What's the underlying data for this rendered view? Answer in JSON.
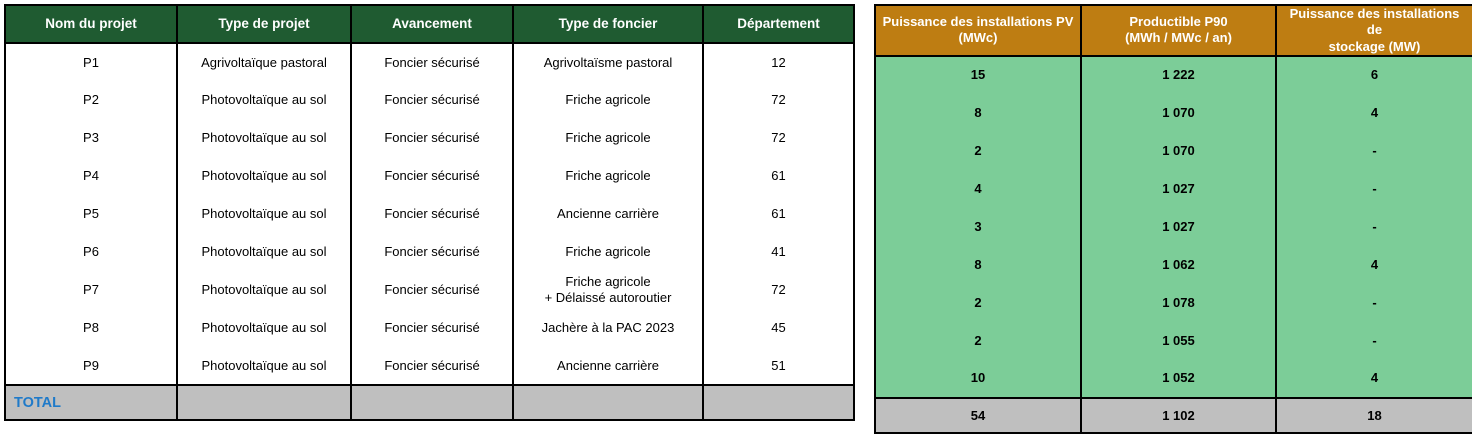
{
  "colors": {
    "header_green": "#1F5B31",
    "header_orange": "#BE7D12",
    "cell_green": "#7CCD98",
    "total_gray": "#BFBFBF",
    "total_blue": "#1F7AC9",
    "border": "#000000"
  },
  "left_table": {
    "headers": [
      "Nom du projet",
      "Type de projet",
      "Avancement",
      "Type de foncier",
      "Département"
    ],
    "rows": [
      [
        "P1",
        "Agrivoltaïque pastoral",
        "Foncier sécurisé",
        "Agrivoltaïsme pastoral",
        "12"
      ],
      [
        "P2",
        "Photovoltaïque au sol",
        "Foncier sécurisé",
        "Friche agricole",
        "72"
      ],
      [
        "P3",
        "Photovoltaïque au sol",
        "Foncier sécurisé",
        "Friche agricole",
        "72"
      ],
      [
        "P4",
        "Photovoltaïque au sol",
        "Foncier sécurisé",
        "Friche agricole",
        "61"
      ],
      [
        "P5",
        "Photovoltaïque au sol",
        "Foncier sécurisé",
        "Ancienne carrière",
        "61"
      ],
      [
        "P6",
        "Photovoltaïque au sol",
        "Foncier sécurisé",
        "Friche agricole",
        "41"
      ],
      [
        "P7",
        "Photovoltaïque au sol",
        "Foncier sécurisé",
        "Friche agricole\n+ Délaissé autoroutier",
        "72"
      ],
      [
        "P8",
        "Photovoltaïque au sol",
        "Foncier sécurisé",
        "Jachère à la PAC 2023",
        "45"
      ],
      [
        "P9",
        "Photovoltaïque au sol",
        "Foncier sécurisé",
        "Ancienne carrière",
        "51"
      ]
    ],
    "total_row": {
      "label": "TOTAL",
      "cells": [
        "",
        "",
        "",
        ""
      ]
    }
  },
  "right_table": {
    "headers": [
      {
        "line1": "Puissance des installations PV",
        "line2": "(MWc)"
      },
      {
        "line1": "Productible P90",
        "line2": "(MWh / MWc / an)"
      },
      {
        "line1": "Puissance des installations de",
        "line2": "stockage (MW)"
      }
    ],
    "rows": [
      [
        "15",
        "1 222",
        "6"
      ],
      [
        "8",
        "1 070",
        "4"
      ],
      [
        "2",
        "1 070",
        "-"
      ],
      [
        "4",
        "1 027",
        "-"
      ],
      [
        "3",
        "1 027",
        "-"
      ],
      [
        "8",
        "1 062",
        "4"
      ],
      [
        "2",
        "1 078",
        "-"
      ],
      [
        "2",
        "1 055",
        "-"
      ],
      [
        "10",
        "1 052",
        "4"
      ]
    ],
    "total_row": [
      "54",
      "1 102",
      "18"
    ]
  }
}
